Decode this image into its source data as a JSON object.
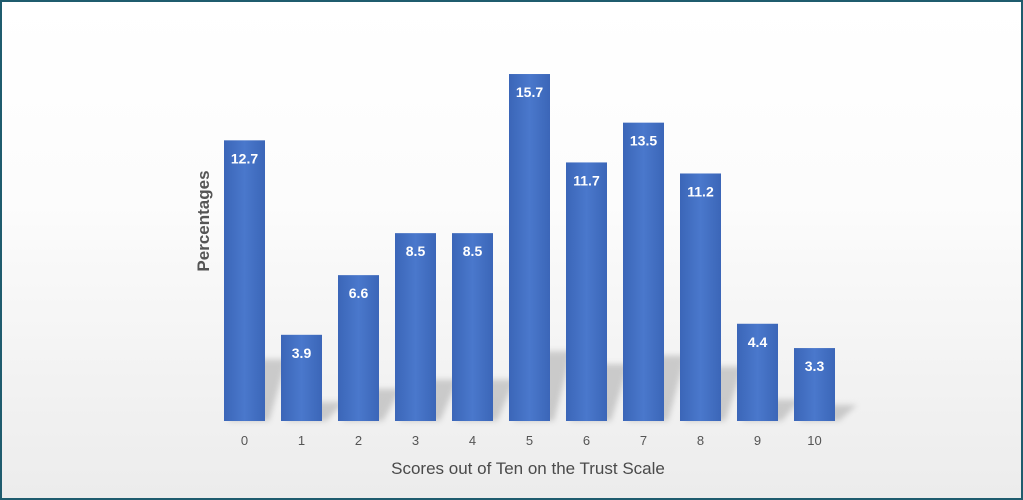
{
  "chart_data": {
    "type": "bar",
    "categories": [
      "0",
      "1",
      "2",
      "3",
      "4",
      "5",
      "6",
      "7",
      "8",
      "9",
      "10"
    ],
    "values": [
      12.7,
      3.9,
      6.6,
      8.5,
      8.5,
      15.7,
      11.7,
      13.5,
      11.2,
      4.4,
      3.3
    ],
    "xlabel": "Scores out of Ten on the Trust Scale",
    "ylabel": "Percentages",
    "ylim": [
      0,
      16
    ],
    "bar_color": "#4472c4",
    "label_color": "#ffffff",
    "grid": false,
    "legend": "none"
  }
}
